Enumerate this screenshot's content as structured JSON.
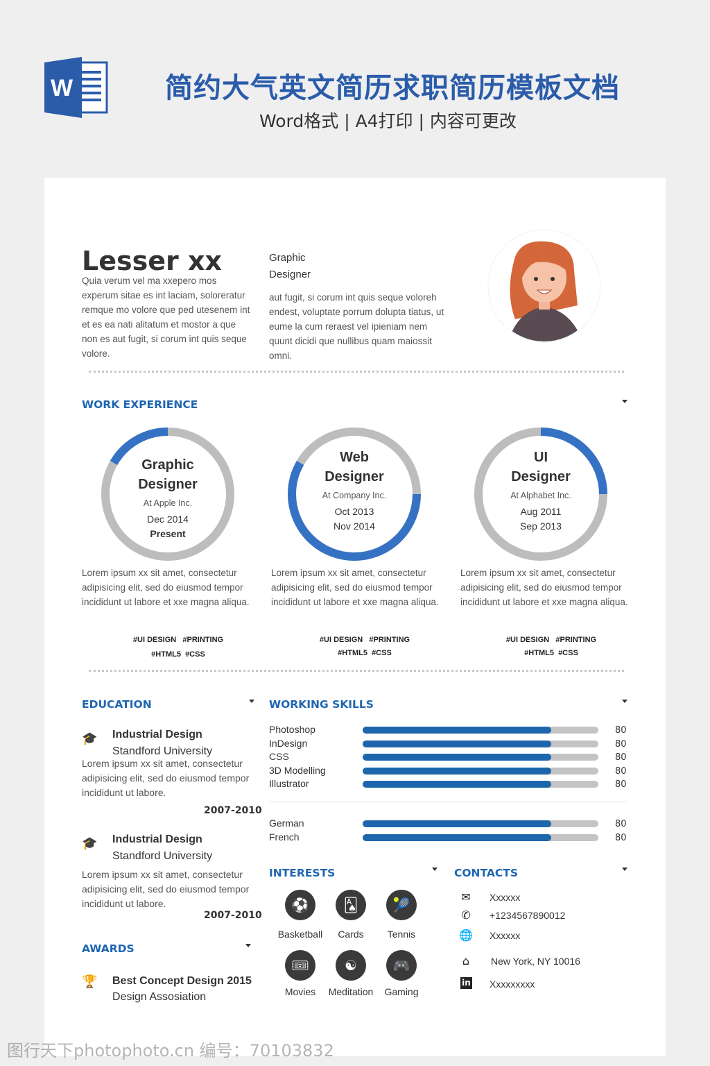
{
  "banner": {
    "title": "简约大气英文简历求职简历模板文档",
    "subtitle": "Word格式 | A4打印 | 内容可更改",
    "logo_letter": "W"
  },
  "profile": {
    "name": "Lesser xx",
    "intro": "Quia verum vel ma xxepero mos experum sitae es int laciam, soloreratur remque mo volore que ped utesenem int et es ea nati alitatum et mostor a que non es aut fugit, si corum int quis seque volore.",
    "role_line1": "Graphic",
    "role_line2": "Designer",
    "role_desc": "aut fugit, si corum int quis seque voloreh endest, voluptate porrum dolupta tiatus, ut eume la cum reraest vel ipieniam nem quunt dicidi que nullibus quam maiossit omni."
  },
  "work": {
    "title": "WORK EXPERIENCE",
    "jobs": [
      {
        "l1": "Graphic",
        "l2": "Designer",
        "company": "At Apple Inc.",
        "from": "Dec 2014",
        "to": "Present",
        "progress_start": 0.833,
        "progress_end": 1.0,
        "desc": "Lorem ipsum xx sit amet, consectetur adipisicing elit, sed do eiusmod tempor incididunt ut labore et xxe magna aliqua.",
        "tags1": "#UI DESIGN   #PRINTING",
        "tags2": "#HTML5  #CSS"
      },
      {
        "l1": "Web",
        "l2": "Designer",
        "company": "At Company Inc.",
        "from": "Oct 2013",
        "to": "Nov 2014",
        "progress_start": 0.25,
        "progress_end": 0.833,
        "desc": "Lorem ipsum xx sit amet, consectetur adipisicing elit, sed do eiusmod tempor incididunt ut labore et xxe magna aliqua.",
        "tags1": "#UI DESIGN   #PRINTING",
        "tags2": "#HTML5  #CSS"
      },
      {
        "l1": "UI",
        "l2": "Designer",
        "company": "At Alphabet Inc.",
        "from": "Aug 2011",
        "to": "Sep 2013",
        "progress_start": 0.0,
        "progress_end": 0.25,
        "desc": "Lorem ipsum xx sit amet, consectetur adipisicing elit, sed do eiusmod tempor incididunt ut labore et xxe magna aliqua.",
        "tags1": "#UI DESIGN   #PRINTING",
        "tags2": "#HTML5  #CSS"
      }
    ]
  },
  "education": {
    "title": "EDUCATION",
    "items": [
      {
        "degree": "Industrial Design",
        "school": "Standford University",
        "desc": "Lorem ipsum xx sit amet, consectetur adipisicing elit, sed do eiusmod tempor incididunt ut labore.",
        "years": "2007-2010"
      },
      {
        "degree": "Industrial Design",
        "school": "Standford University",
        "desc": "Lorem ipsum xx sit amet, consectetur adipisicing elit, sed do eiusmod tempor incididunt ut labore.",
        "years": "2007-2010"
      }
    ]
  },
  "awards": {
    "title": "AWARDS",
    "items": [
      {
        "name": "Best Concept Design 2015",
        "org": "Design Assosiation"
      }
    ]
  },
  "skills": {
    "title": "WORKING SKILLS",
    "items": [
      {
        "name": "Photoshop",
        "value": 80
      },
      {
        "name": "InDesign",
        "value": 80
      },
      {
        "name": "CSS",
        "value": 80
      },
      {
        "name": "3D Modelling",
        "value": 80
      },
      {
        "name": "Illustrator",
        "value": 80
      }
    ],
    "languages": [
      {
        "name": "German",
        "value": 80
      },
      {
        "name": "French",
        "value": 80
      }
    ]
  },
  "interests": {
    "title": "INTERESTS",
    "items": [
      {
        "label": "Basketball",
        "icon": "basketball-icon",
        "glyph": "⚽"
      },
      {
        "label": "Cards",
        "icon": "cards-icon",
        "glyph": "🂡"
      },
      {
        "label": "Tennis",
        "icon": "tennis-icon",
        "glyph": "🎾"
      },
      {
        "label": "Movies",
        "icon": "ticket-icon",
        "glyph": "🎟"
      },
      {
        "label": "Meditation",
        "icon": "meditation-icon",
        "glyph": "☯"
      },
      {
        "label": "Gaming",
        "icon": "gamepad-icon",
        "glyph": "🎮"
      }
    ]
  },
  "contacts": {
    "title": "CONTACTS",
    "items": [
      {
        "icon": "mail-icon",
        "glyph": "✉",
        "text": "Xxxxxx"
      },
      {
        "icon": "phone-icon",
        "glyph": "✆",
        "text": "+1234567890012"
      },
      {
        "icon": "globe-icon",
        "glyph": "🌐",
        "text": "Xxxxxx"
      },
      {
        "icon": "home-icon",
        "glyph": "⌂",
        "text": "New York, NY 10016"
      },
      {
        "icon": "linkedin-icon",
        "glyph": "in",
        "text": "Xxxxxxxxx"
      }
    ]
  },
  "watermark": "图行天下photophoto.cn 编号：70103832",
  "colors": {
    "accent": "#1f66b1",
    "ring_fill": "#3572c4",
    "ring_track": "#bdbdbd",
    "bar_fill": "#1e66ac"
  }
}
